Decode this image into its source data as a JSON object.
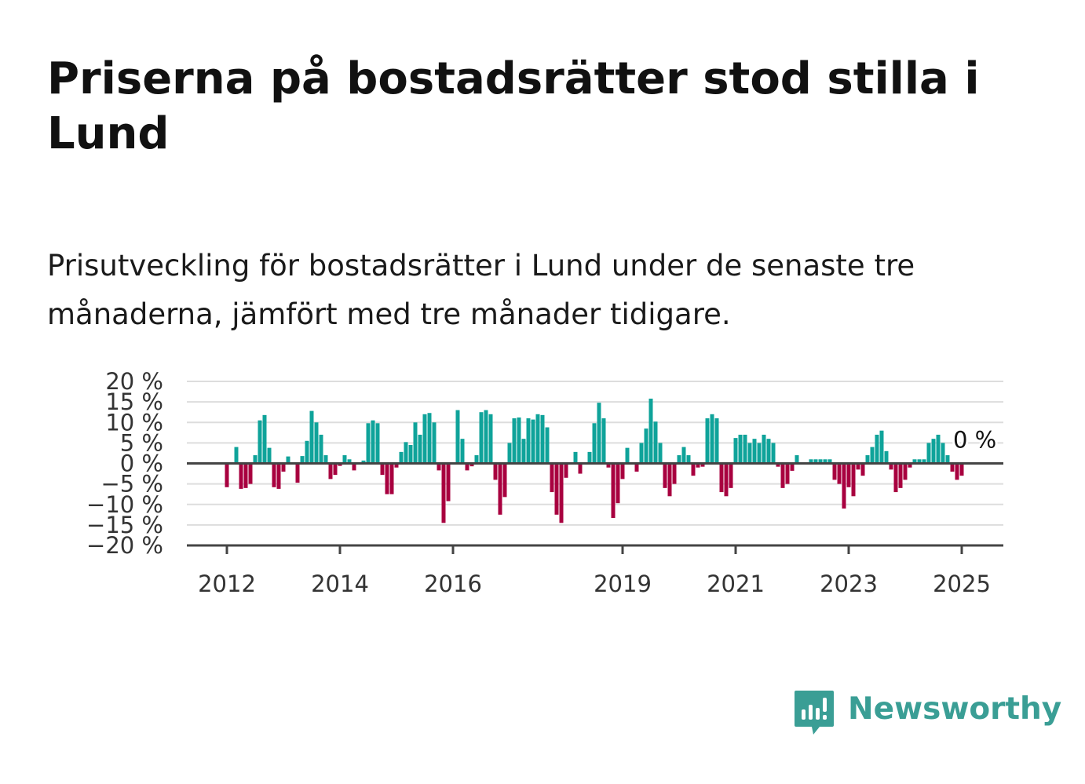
{
  "title": "Priserna på bostadsrätter stod stilla i Lund",
  "subtitle": "Prisutveckling för bostadsrätter i Lund under de senaste tre månaderna, jämfört med tre månader tidigare.",
  "logo": {
    "text": "Newsworthy",
    "icon": "newsworthy-logo-icon",
    "color": "#3a9e95"
  },
  "colors": {
    "positive": "#0fa39a",
    "negative": "#a8003f",
    "grid": "#dddddd",
    "axis": "#444444"
  },
  "chart_data": {
    "type": "bar",
    "title": "Priserna på bostadsrätter stod stilla i Lund",
    "subtitle": "Prisutveckling för bostadsrätter i Lund under de senaste tre månaderna, jämfört med tre månader tidigare.",
    "xlabel": "",
    "ylabel": "",
    "ylim": [
      -20,
      20
    ],
    "yticks": [
      20,
      15,
      10,
      5,
      0,
      -5,
      -10,
      -15,
      -20
    ],
    "ytick_labels": [
      "20 %",
      "15 %",
      "10 %",
      "5 %",
      "0 %",
      "−5 %",
      "−10 %",
      "−15 %",
      "−20 %"
    ],
    "xticks": [
      "2012",
      "2014",
      "2016",
      "2019",
      "2021",
      "2023",
      "2025"
    ],
    "grid": true,
    "legend": "none",
    "start": "2012-01",
    "frequency": "monthly",
    "annotation": {
      "text": "0 %",
      "at": "2025-02",
      "value": 0
    },
    "values": [
      -5.8,
      0,
      4.0,
      -6.2,
      -6.0,
      -5.0,
      2.0,
      10.5,
      11.8,
      3.8,
      -5.8,
      -6.2,
      -2.0,
      1.7,
      0,
      -4.7,
      1.8,
      5.5,
      12.8,
      10.0,
      7.0,
      2.0,
      -3.8,
      -2.8,
      -0.6,
      2.0,
      1.0,
      -1.7,
      0,
      0.7,
      9.8,
      10.5,
      9.8,
      -2.8,
      -7.5,
      -7.5,
      -1.0,
      2.8,
      5.2,
      4.5,
      10.0,
      7.0,
      12.0,
      12.3,
      10.0,
      -1.7,
      -14.5,
      -9.2,
      0,
      13.0,
      6.0,
      -1.7,
      -0.7,
      2.0,
      12.5,
      13.0,
      12.0,
      -4.0,
      -12.5,
      -8.2,
      5.0,
      11.0,
      11.2,
      6.0,
      11.0,
      10.7,
      12.0,
      11.8,
      8.8,
      -7.0,
      -12.5,
      -14.5,
      -3.5,
      0,
      2.8,
      -2.5,
      0,
      2.8,
      9.8,
      14.8,
      11.0,
      -1.0,
      -13.3,
      -9.7,
      -3.8,
      3.8,
      0,
      -2.0,
      5.0,
      8.5,
      15.8,
      10.2,
      5.0,
      -6.0,
      -8.0,
      -5.0,
      2.0,
      4.0,
      2.0,
      -3.0,
      -1.0,
      -0.8,
      11.0,
      12.0,
      11.0,
      -7.0,
      -8.0,
      -6.0,
      6.2,
      7.0,
      7.0,
      5.0,
      6.0,
      5.0,
      7.0,
      6.0,
      5.0,
      -0.8,
      -6.0,
      -5.0,
      -1.8,
      2.0,
      0,
      0,
      1.0,
      1.0,
      1.0,
      1.0,
      1.0,
      -4.0,
      -5.0,
      -11.0,
      -5.8,
      -8.0,
      -1.5,
      -3.0,
      2.0,
      4.0,
      7.0,
      8.0,
      3.0,
      -1.5,
      -7.0,
      -6.0,
      -4.0,
      -1.0,
      1.0,
      1.0,
      1.0,
      5.0,
      6.0,
      7.0,
      5.0,
      2.0,
      -2.0,
      -4.0,
      -3.0,
      0
    ]
  }
}
